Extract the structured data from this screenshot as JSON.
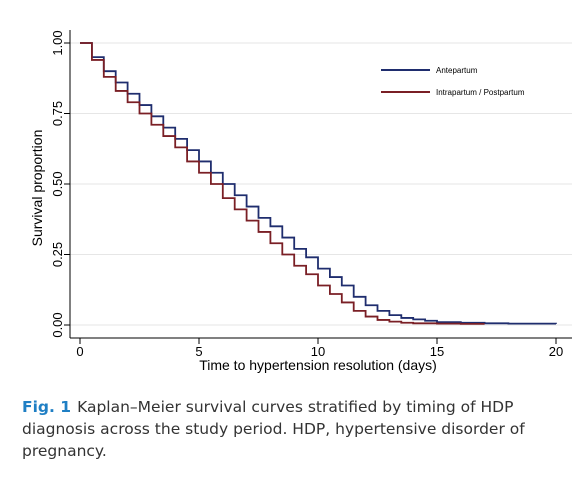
{
  "chart_data": {
    "type": "line",
    "step": true,
    "xlabel": "Time to hypertension resolution (days)",
    "ylabel": "Survival proportion",
    "xlim": [
      0,
      20
    ],
    "ylim": [
      0,
      1
    ],
    "x_ticks": [
      "0",
      "5",
      "10",
      "15",
      "20"
    ],
    "y_ticks": [
      "0.00",
      "0.25",
      "0.50",
      "0.75",
      "1.00"
    ],
    "grid": true,
    "legend_position": "top-right",
    "series": [
      {
        "name": "Antepartum",
        "color": "#1f2d6e",
        "x": [
          0,
          0.5,
          1,
          1.5,
          2,
          2.5,
          3,
          3.5,
          4,
          4.5,
          5,
          5.5,
          6,
          6.5,
          7,
          7.5,
          8,
          8.5,
          9,
          9.5,
          10,
          10.5,
          11,
          11.5,
          12,
          12.5,
          13,
          13.5,
          14,
          14.5,
          15,
          16,
          17,
          18,
          20
        ],
        "y": [
          1.0,
          0.95,
          0.9,
          0.86,
          0.82,
          0.78,
          0.74,
          0.7,
          0.66,
          0.62,
          0.58,
          0.54,
          0.5,
          0.46,
          0.42,
          0.38,
          0.35,
          0.31,
          0.27,
          0.24,
          0.2,
          0.17,
          0.14,
          0.1,
          0.07,
          0.05,
          0.035,
          0.025,
          0.02,
          0.015,
          0.01,
          0.008,
          0.006,
          0.005,
          0.004
        ]
      },
      {
        "name": "Intrapartum / Postpartum",
        "color": "#7a1f25",
        "x": [
          0,
          0.5,
          1,
          1.5,
          2,
          2.5,
          3,
          3.5,
          4,
          4.5,
          5,
          5.5,
          6,
          6.5,
          7,
          7.5,
          8,
          8.5,
          9,
          9.5,
          10,
          10.5,
          11,
          11.5,
          12,
          12.5,
          13,
          13.5,
          14,
          15,
          16,
          17
        ],
        "y": [
          1.0,
          0.94,
          0.88,
          0.83,
          0.79,
          0.75,
          0.71,
          0.67,
          0.63,
          0.58,
          0.54,
          0.5,
          0.45,
          0.41,
          0.37,
          0.33,
          0.29,
          0.25,
          0.21,
          0.18,
          0.14,
          0.11,
          0.08,
          0.05,
          0.03,
          0.018,
          0.012,
          0.008,
          0.006,
          0.005,
          0.004,
          0.004
        ]
      }
    ]
  },
  "caption": {
    "label": "Fig. 1",
    "text": "Kaplan–Meier survival curves stratified by timing of HDP diagnosis across the study period. HDP, hypertensive disorder of pregnancy."
  }
}
